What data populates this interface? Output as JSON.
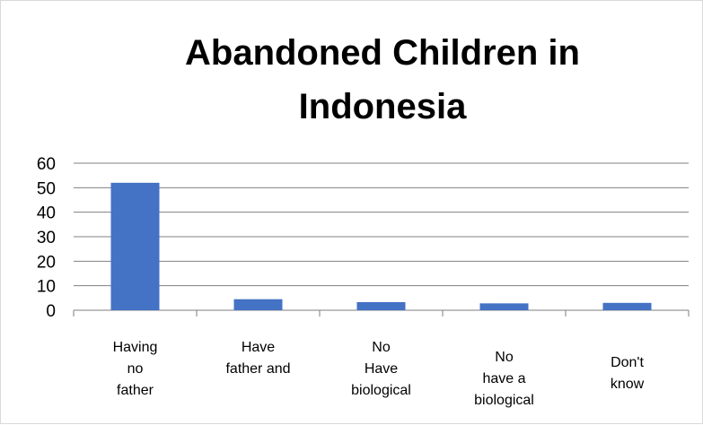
{
  "chart_data": {
    "type": "bar",
    "title_lines": [
      "Abandoned Children in",
      "Indonesia"
    ],
    "categories": [
      [
        "Having",
        "no",
        "father"
      ],
      [
        "Have",
        "father and"
      ],
      [
        "No",
        "Have",
        "biological"
      ],
      [
        "No",
        "have a",
        "biological"
      ],
      [
        "Don't",
        "know"
      ]
    ],
    "values": [
      52,
      4.5,
      3.3,
      2.8,
      3
    ],
    "ylim": [
      0,
      60
    ],
    "yticks": [
      0,
      10,
      20,
      30,
      40,
      50,
      60
    ],
    "grid": true,
    "legend": "none",
    "colors": {
      "bar": "#4472c4",
      "grid": "#808080",
      "axis": "#7f7f7f"
    }
  }
}
